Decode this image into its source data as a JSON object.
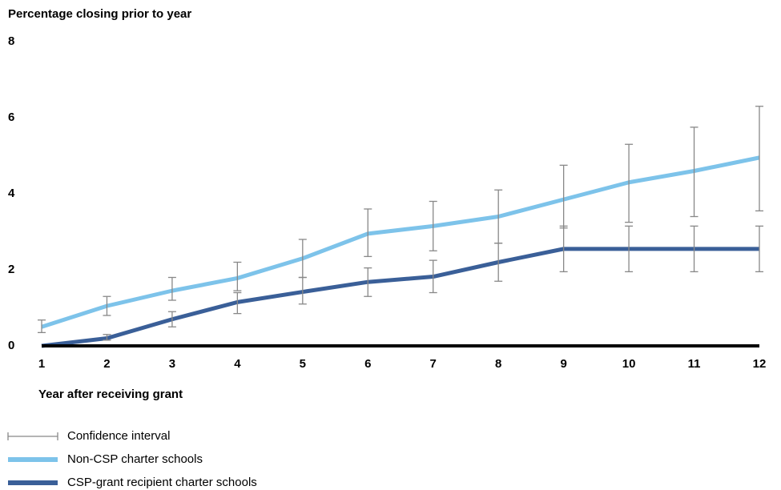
{
  "chart_data": {
    "type": "line",
    "y_label": "Percentage closing prior to year",
    "x_label": "Year after receiving grant",
    "x": [
      1,
      2,
      3,
      4,
      5,
      6,
      7,
      8,
      9,
      10,
      11,
      12
    ],
    "xlim": [
      1,
      12
    ],
    "xticks": [
      1,
      2,
      3,
      4,
      5,
      6,
      7,
      8,
      9,
      10,
      11,
      12
    ],
    "ylim": [
      0,
      8
    ],
    "yticks": [
      0,
      2,
      4,
      6,
      8
    ],
    "grid": false,
    "ci_legend": "Confidence interval",
    "ci_color": "#888888",
    "series": [
      {
        "name": "Non-CSP charter schools",
        "color": "#7dc3ea",
        "values": [
          0.5,
          1.05,
          1.45,
          1.78,
          2.3,
          2.95,
          3.15,
          3.4,
          3.85,
          4.3,
          4.6,
          4.95
        ],
        "ci_low": [
          0.35,
          0.8,
          1.2,
          1.45,
          1.8,
          2.35,
          2.5,
          2.7,
          3.1,
          3.25,
          3.4,
          3.55
        ],
        "ci_high": [
          0.68,
          1.3,
          1.8,
          2.2,
          2.8,
          3.6,
          3.8,
          4.1,
          4.75,
          5.3,
          5.75,
          6.3
        ]
      },
      {
        "name": "CSP-grant recipient charter schools",
        "color": "#3a5f98",
        "values": [
          0,
          0.2,
          0.7,
          1.15,
          1.42,
          1.68,
          1.82,
          2.2,
          2.55,
          2.55,
          2.55,
          2.55
        ],
        "ci_low": [
          null,
          0.15,
          0.5,
          0.85,
          1.1,
          1.3,
          1.4,
          1.7,
          1.95,
          1.95,
          1.95,
          1.95
        ],
        "ci_high": [
          null,
          0.3,
          0.9,
          1.4,
          1.8,
          2.05,
          2.25,
          2.7,
          3.15,
          3.15,
          3.15,
          3.15
        ]
      }
    ]
  }
}
